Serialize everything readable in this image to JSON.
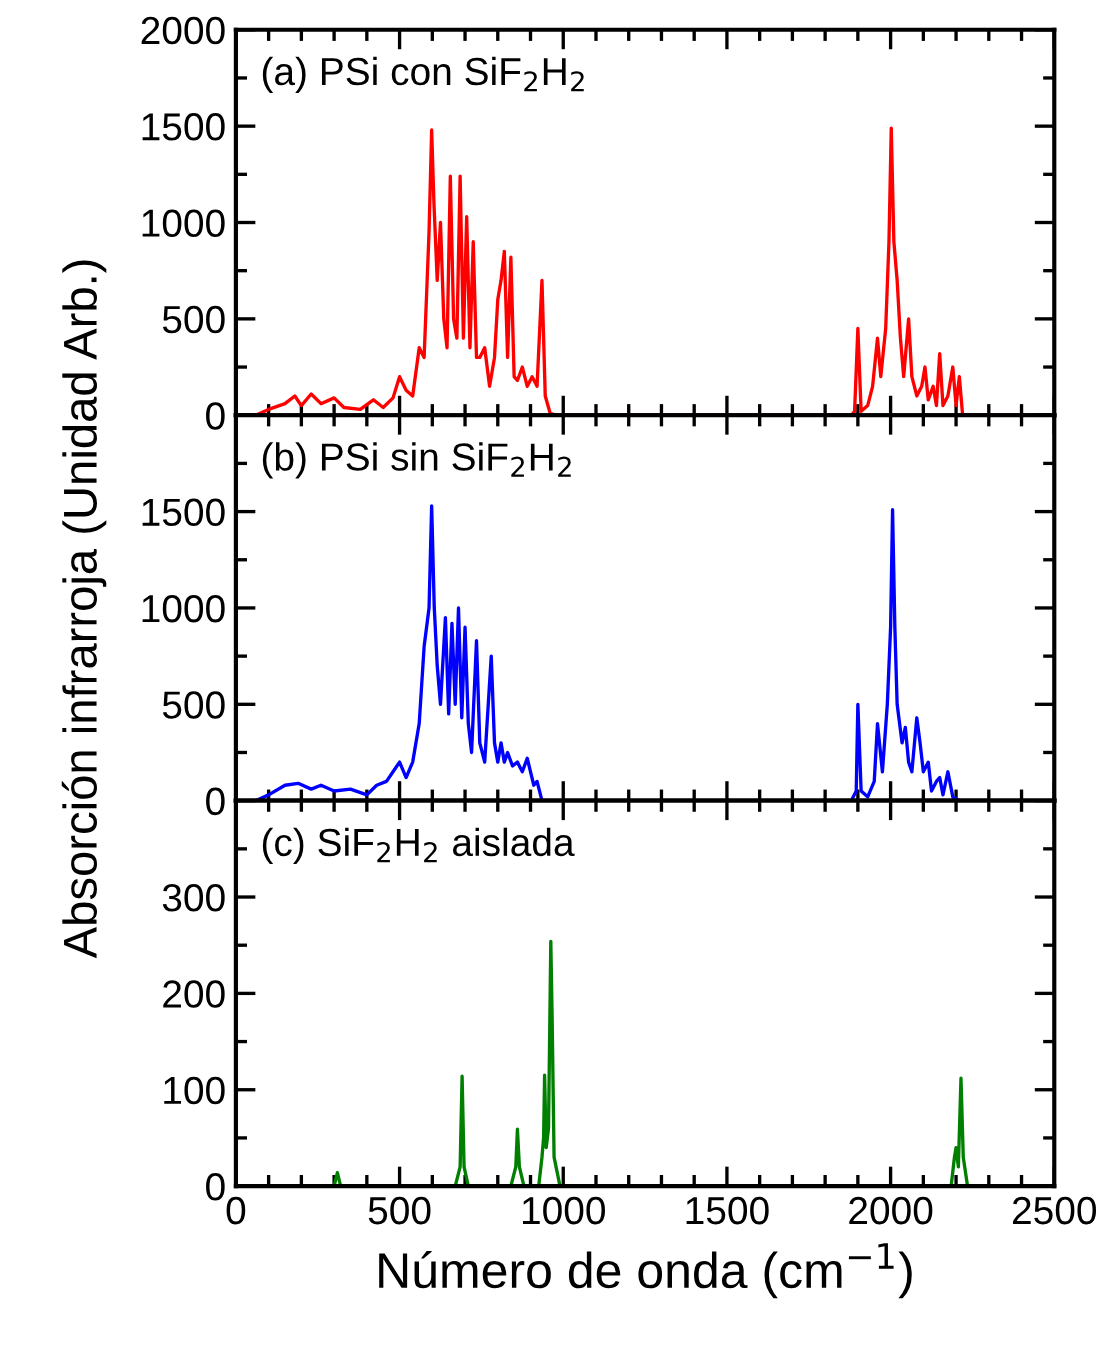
{
  "chart_data": [
    {
      "type": "line",
      "annotations": [
        "(a) PSi con SiF$_{2}$H$_{2}$"
      ],
      "xlim": [
        0,
        2500
      ],
      "xticks": [
        0,
        500,
        1000,
        1500,
        2000,
        2500
      ],
      "ylim": [
        0,
        2000
      ],
      "yticks": [
        0,
        500,
        1000,
        1500,
        2000
      ],
      "tick_labels": "y",
      "series": [
        {
          "color": "#ff0000",
          "x": [
            0,
            60,
            100,
            150,
            180,
            200,
            230,
            260,
            300,
            330,
            380,
            420,
            450,
            480,
            500,
            520,
            540,
            560,
            575,
            590,
            598,
            605,
            615,
            625,
            635,
            645,
            655,
            665,
            675,
            685,
            695,
            705,
            715,
            725,
            735,
            745,
            760,
            775,
            790,
            800,
            810,
            820,
            830,
            840,
            850,
            860,
            875,
            890,
            905,
            920,
            935,
            945,
            960,
            980,
            1880,
            1890,
            1900,
            1910,
            1930,
            1945,
            1960,
            1970,
            1985,
            1995,
            2002,
            2010,
            2020,
            2030,
            2040,
            2055,
            2065,
            2080,
            2095,
            2105,
            2115,
            2130,
            2140,
            2150,
            2160,
            2175,
            2190,
            2200,
            2210,
            2220,
            2500
          ],
          "values": [
            0,
            0,
            30,
            60,
            100,
            50,
            110,
            60,
            90,
            40,
            30,
            80,
            40,
            90,
            200,
            130,
            100,
            350,
            300,
            950,
            1480,
            1100,
            700,
            1000,
            500,
            350,
            1240,
            500,
            400,
            1240,
            400,
            1030,
            350,
            900,
            300,
            300,
            350,
            150,
            300,
            600,
            700,
            850,
            300,
            820,
            200,
            180,
            250,
            150,
            200,
            150,
            700,
            100,
            10,
            0,
            0,
            20,
            450,
            20,
            50,
            150,
            400,
            200,
            450,
            900,
            1490,
            900,
            700,
            400,
            200,
            500,
            200,
            100,
            150,
            250,
            80,
            150,
            50,
            320,
            50,
            100,
            250,
            50,
            200,
            0,
            0
          ]
        }
      ]
    },
    {
      "type": "line",
      "annotations": [
        "(b) PSi sin SiF$_{2}$H$_{2}$"
      ],
      "ylabel": "Absorción infrarroja (Unidad Arb.)",
      "xlim": [
        0,
        2500
      ],
      "xticks": [
        0,
        500,
        1000,
        1500,
        2000,
        2500
      ],
      "ylim": [
        0,
        2000
      ],
      "yticks": [
        0,
        500,
        1000,
        1500,
        {
          "value": 2000,
          "label": null
        }
      ],
      "tick_labels": "y",
      "series": [
        {
          "color": "#0000ff",
          "x": [
            0,
            60,
            100,
            150,
            190,
            230,
            260,
            300,
            350,
            400,
            430,
            460,
            480,
            500,
            520,
            540,
            560,
            575,
            590,
            598,
            606,
            615,
            625,
            640,
            650,
            660,
            670,
            680,
            690,
            700,
            710,
            720,
            735,
            745,
            760,
            780,
            790,
            800,
            810,
            820,
            830,
            845,
            860,
            875,
            890,
            910,
            920,
            935,
            1880,
            1895,
            1900,
            1910,
            1930,
            1950,
            1960,
            1975,
            1990,
            2000,
            2006,
            2013,
            2020,
            2035,
            2045,
            2055,
            2065,
            2080,
            2090,
            2100,
            2115,
            2125,
            2140,
            2150,
            2160,
            2175,
            2190,
            2210,
            2500
          ],
          "values": [
            0,
            0,
            30,
            80,
            90,
            60,
            80,
            50,
            60,
            30,
            80,
            100,
            150,
            200,
            120,
            200,
            400,
            800,
            1000,
            1530,
            1000,
            700,
            500,
            950,
            450,
            920,
            500,
            1000,
            430,
            900,
            400,
            250,
            830,
            300,
            200,
            750,
            300,
            200,
            300,
            200,
            250,
            180,
            200,
            150,
            220,
            80,
            100,
            0,
            0,
            50,
            500,
            50,
            20,
            100,
            400,
            150,
            500,
            900,
            1510,
            900,
            500,
            300,
            380,
            200,
            150,
            430,
            300,
            150,
            200,
            50,
            100,
            120,
            30,
            150,
            20,
            0,
            0
          ]
        }
      ]
    },
    {
      "type": "line",
      "annotations": [
        "(c) SiF$_{2}$H$_{2}$ aislada"
      ],
      "xlabel": "Número de onda (cm$^{−1}$)",
      "xlim": [
        0,
        2500
      ],
      "xticks": [
        0,
        500,
        1000,
        1500,
        2000,
        2500
      ],
      "ylim": [
        0,
        400
      ],
      "yticks": [
        0,
        100,
        200,
        300,
        {
          "value": 400,
          "label": null
        }
      ],
      "series": [
        {
          "color": "#007f00",
          "x": [
            0,
            300,
            310,
            320,
            670,
            685,
            691,
            697,
            710,
            840,
            855,
            860,
            866,
            880,
            925,
            935,
            940,
            943,
            948,
            955,
            962,
            966,
            972,
            990,
            2185,
            2195,
            2200,
            2207,
            2215,
            2222,
            2235,
            2500
          ],
          "values": [
            0,
            0,
            14,
            0,
            0,
            20,
            114,
            20,
            0,
            0,
            20,
            59,
            20,
            0,
            0,
            30,
            50,
            115,
            40,
            60,
            254,
            176,
            30,
            0,
            0,
            30,
            40,
            20,
            112,
            30,
            0,
            0
          ]
        }
      ]
    }
  ]
}
